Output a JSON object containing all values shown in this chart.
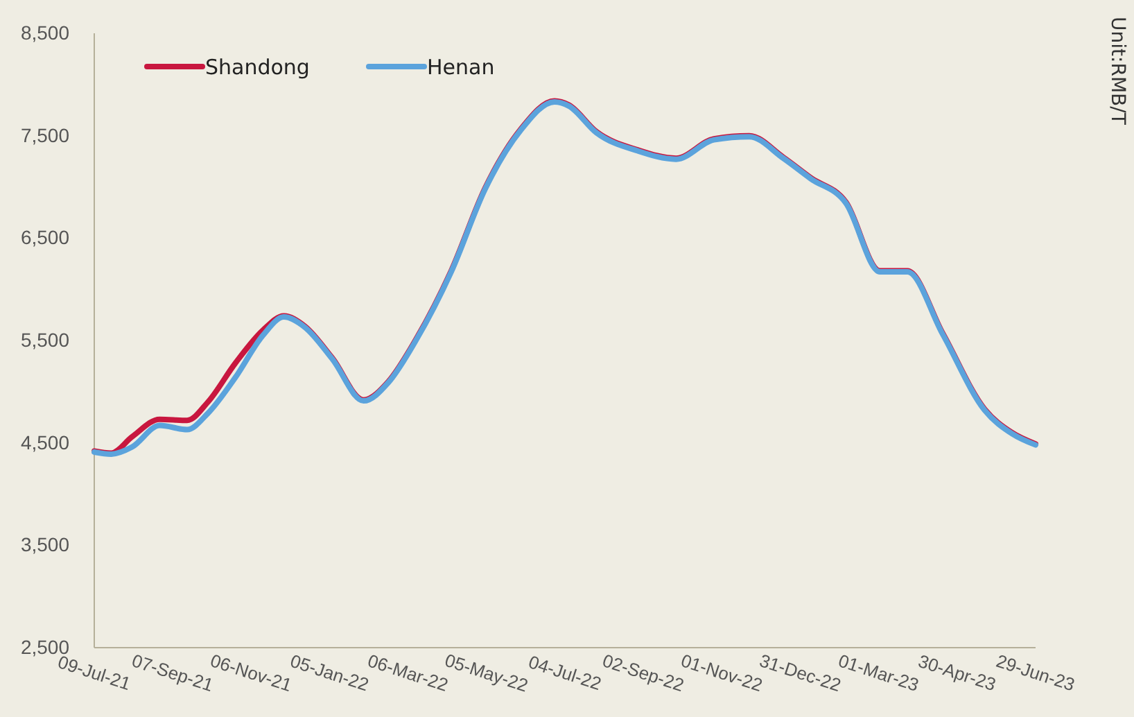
{
  "chart_data": {
    "type": "line",
    "x": [
      "2021-07-09",
      "2021-07-22",
      "2021-08-07",
      "2021-08-28",
      "2021-09-18",
      "2021-10-04",
      "2021-10-25",
      "2021-11-15",
      "2021-12-01",
      "2021-12-17",
      "2022-01-07",
      "2022-01-31",
      "2022-02-19",
      "2022-03-12",
      "2022-04-08",
      "2022-05-04",
      "2022-05-31",
      "2022-06-26",
      "2022-07-07",
      "2022-07-28",
      "2022-08-29",
      "2022-09-27",
      "2022-10-26",
      "2022-11-22",
      "2022-12-18",
      "2023-01-08",
      "2023-02-04",
      "2023-03-02",
      "2023-03-23",
      "2023-04-19",
      "2023-05-21",
      "2023-06-11",
      "2023-06-29"
    ],
    "series": [
      {
        "name": "Shandong",
        "color": "#c8173f",
        "values": [
          4420,
          4400,
          4560,
          4730,
          4720,
          4900,
          5280,
          5600,
          5740,
          5640,
          5330,
          4920,
          5100,
          5510,
          6180,
          6990,
          7560,
          7840,
          7800,
          7540,
          7360,
          7280,
          7470,
          7500,
          7290,
          7090,
          6850,
          6180,
          6180,
          5570,
          4830,
          4600,
          4490
        ]
      },
      {
        "name": "Henan",
        "color": "#5ba3dc",
        "values": [
          4410,
          4390,
          4460,
          4670,
          4630,
          4790,
          5140,
          5550,
          5730,
          5630,
          5320,
          4910,
          5090,
          5500,
          6170,
          6980,
          7550,
          7830,
          7790,
          7530,
          7350,
          7270,
          7460,
          7490,
          7280,
          7080,
          6840,
          6170,
          6170,
          5560,
          4820,
          4590,
          4480
        ]
      }
    ],
    "xlim": [
      "2021-07-09",
      "2023-06-29"
    ],
    "xticks": [
      {
        "value": "2021-07-09",
        "label": "09-Jul-21"
      },
      {
        "value": "2021-09-07",
        "label": "07-Sep-21"
      },
      {
        "value": "2021-11-06",
        "label": "06-Nov-21"
      },
      {
        "value": "2022-01-05",
        "label": "05-Jan-22"
      },
      {
        "value": "2022-03-06",
        "label": "06-Mar-22"
      },
      {
        "value": "2022-05-05",
        "label": "05-May-22"
      },
      {
        "value": "2022-07-04",
        "label": "04-Jul-22"
      },
      {
        "value": "2022-09-02",
        "label": "02-Sep-22"
      },
      {
        "value": "2022-11-01",
        "label": "01-Nov-22"
      },
      {
        "value": "2022-12-31",
        "label": "31-Dec-22"
      },
      {
        "value": "2023-03-01",
        "label": "01-Mar-23"
      },
      {
        "value": "2023-04-30",
        "label": "30-Apr-23"
      },
      {
        "value": "2023-06-29",
        "label": "29-Jun-23"
      }
    ],
    "ylim": [
      2500,
      8500
    ],
    "yticks": [
      {
        "value": 2500,
        "label": "2,500"
      },
      {
        "value": 3500,
        "label": "3,500"
      },
      {
        "value": 4500,
        "label": "4,500"
      },
      {
        "value": 5500,
        "label": "5,500"
      },
      {
        "value": 6500,
        "label": "6,500"
      },
      {
        "value": 7500,
        "label": "7,500"
      },
      {
        "value": 8500,
        "label": "8,500"
      }
    ],
    "annotations": [
      "Unit:RMB/T"
    ],
    "legend": "top left",
    "grid": false,
    "marker": "none",
    "line_style": "solid"
  }
}
